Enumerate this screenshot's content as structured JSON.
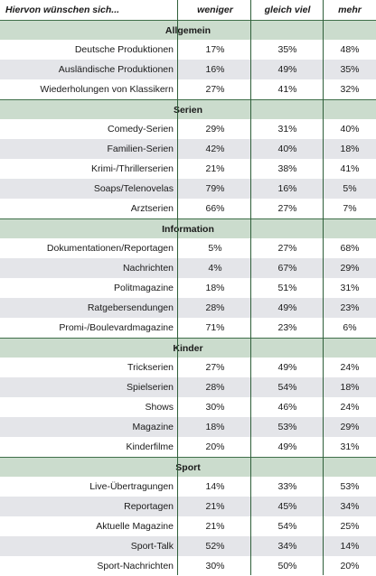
{
  "header": {
    "title": "Hiervon wünschen sich...",
    "columns": [
      "weniger",
      "gleich viel",
      "mehr"
    ]
  },
  "chart_data": {
    "type": "table",
    "columns": [
      "weniger",
      "gleich viel",
      "mehr"
    ],
    "groups": [
      {
        "name": "Allgemein",
        "rows": [
          {
            "label": "Deutsche Produktionen",
            "values": [
              "17%",
              "35%",
              "48%"
            ]
          },
          {
            "label": "Ausländische Produktionen",
            "values": [
              "16%",
              "49%",
              "35%"
            ]
          },
          {
            "label": "Wiederholungen von Klassikern",
            "values": [
              "27%",
              "41%",
              "32%"
            ]
          }
        ]
      },
      {
        "name": "Serien",
        "rows": [
          {
            "label": "Comedy-Serien",
            "values": [
              "29%",
              "31%",
              "40%"
            ]
          },
          {
            "label": "Familien-Serien",
            "values": [
              "42%",
              "40%",
              "18%"
            ]
          },
          {
            "label": "Krimi-/Thrillerserien",
            "values": [
              "21%",
              "38%",
              "41%"
            ]
          },
          {
            "label": "Soaps/Telenovelas",
            "values": [
              "79%",
              "16%",
              "5%"
            ]
          },
          {
            "label": "Arztserien",
            "values": [
              "66%",
              "27%",
              "7%"
            ]
          }
        ]
      },
      {
        "name": "Information",
        "rows": [
          {
            "label": "Dokumentationen/Reportagen",
            "values": [
              "5%",
              "27%",
              "68%"
            ]
          },
          {
            "label": "Nachrichten",
            "values": [
              "4%",
              "67%",
              "29%"
            ]
          },
          {
            "label": "Politmagazine",
            "values": [
              "18%",
              "51%",
              "31%"
            ]
          },
          {
            "label": "Ratgebersendungen",
            "values": [
              "28%",
              "49%",
              "23%"
            ]
          },
          {
            "label": "Promi-/Boulevardmagazine",
            "values": [
              "71%",
              "23%",
              "6%"
            ]
          }
        ]
      },
      {
        "name": "Kinder",
        "rows": [
          {
            "label": "Trickserien",
            "values": [
              "27%",
              "49%",
              "24%"
            ]
          },
          {
            "label": "Spielserien",
            "values": [
              "28%",
              "54%",
              "18%"
            ]
          },
          {
            "label": "Shows",
            "values": [
              "30%",
              "46%",
              "24%"
            ]
          },
          {
            "label": "Magazine",
            "values": [
              "18%",
              "53%",
              "29%"
            ]
          },
          {
            "label": "Kinderfilme",
            "values": [
              "20%",
              "49%",
              "31%"
            ]
          }
        ]
      },
      {
        "name": "Sport",
        "rows": [
          {
            "label": "Live-Übertragungen",
            "values": [
              "14%",
              "33%",
              "53%"
            ]
          },
          {
            "label": "Reportagen",
            "values": [
              "21%",
              "45%",
              "34%"
            ]
          },
          {
            "label": "Aktuelle Magazine",
            "values": [
              "21%",
              "54%",
              "25%"
            ]
          },
          {
            "label": "Sport-Talk",
            "values": [
              "52%",
              "34%",
              "14%"
            ]
          },
          {
            "label": "Sport-Nachrichten",
            "values": [
              "30%",
              "50%",
              "20%"
            ]
          }
        ]
      }
    ]
  },
  "colors": {
    "section_bg": "#cbdccd",
    "row_alt_bg": "#e4e5e9",
    "divider": "#2f5f3a"
  }
}
